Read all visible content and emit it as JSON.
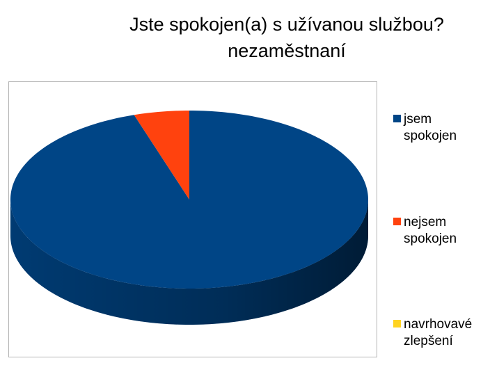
{
  "chart_data": {
    "type": "pie",
    "title": "Jste spokojen(a) s užívanou službou?",
    "subtitle": "nezaměstnaní",
    "categories": [
      "jsem spokojen",
      "nejsem spokojen",
      "navrhovavé zlepšení"
    ],
    "values": [
      95,
      5,
      0
    ],
    "colors": [
      "#004586",
      "#ff420e",
      "#ffd320"
    ],
    "legend": "right"
  }
}
